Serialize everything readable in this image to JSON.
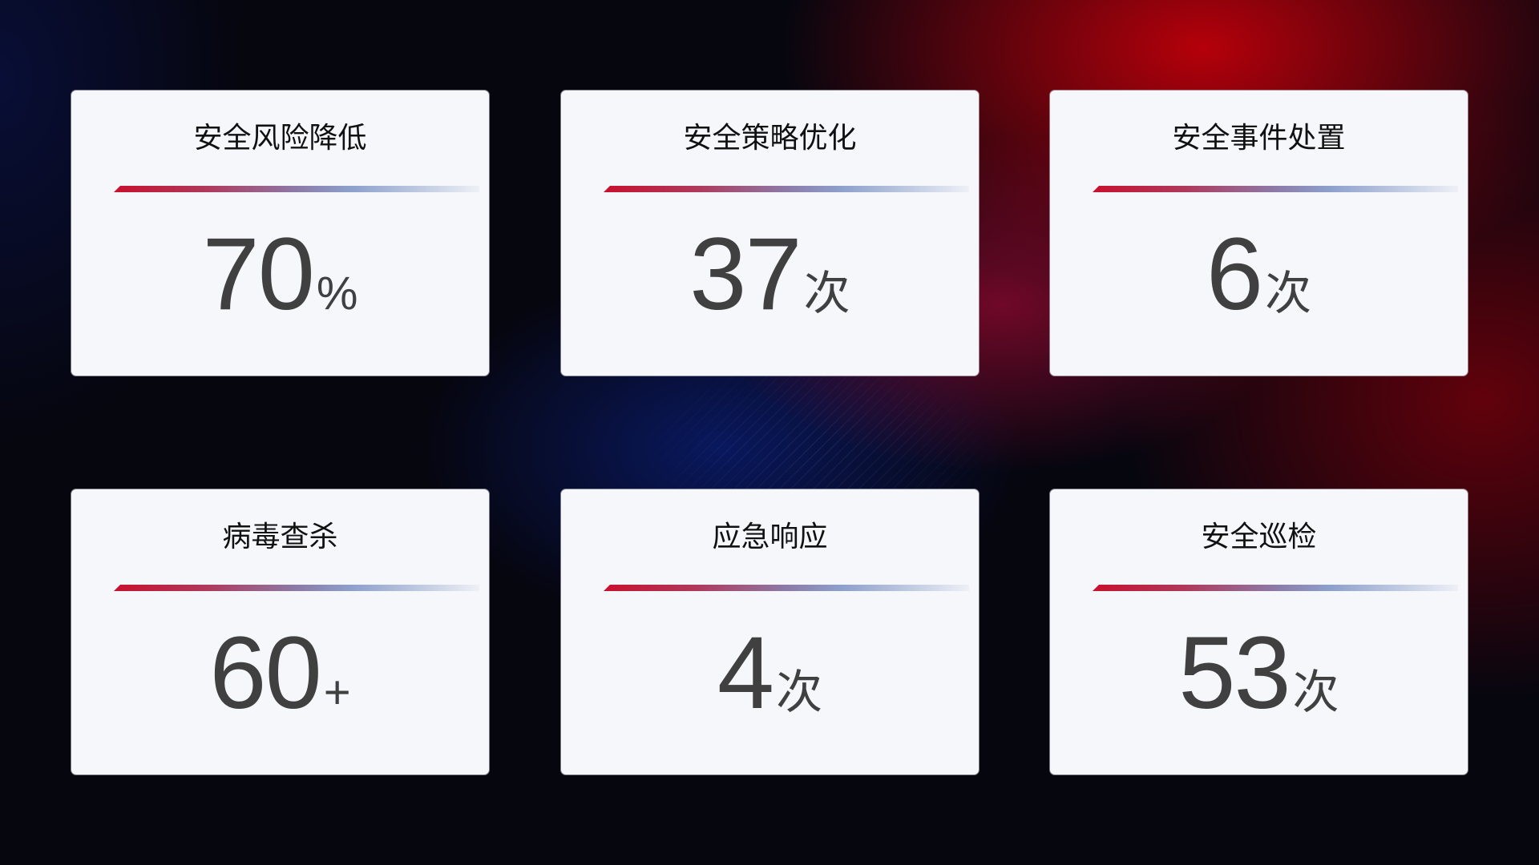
{
  "cards": [
    {
      "title": "安全风险降低",
      "value": "70",
      "unit": "%"
    },
    {
      "title": "安全策略优化",
      "value": "37",
      "unit": "次"
    },
    {
      "title": "安全事件处置",
      "value": "6",
      "unit": "次"
    },
    {
      "title": "病毒查杀",
      "value": "60",
      "unit": "+"
    },
    {
      "title": "应急响应",
      "value": "4",
      "unit": "次"
    },
    {
      "title": "安全巡检",
      "value": "53",
      "unit": "次"
    }
  ],
  "colors": {
    "accent_red": "#c8102e",
    "accent_blue": "#8da0cc",
    "card_bg": "#f5f7fb",
    "value_text": "#404040"
  }
}
